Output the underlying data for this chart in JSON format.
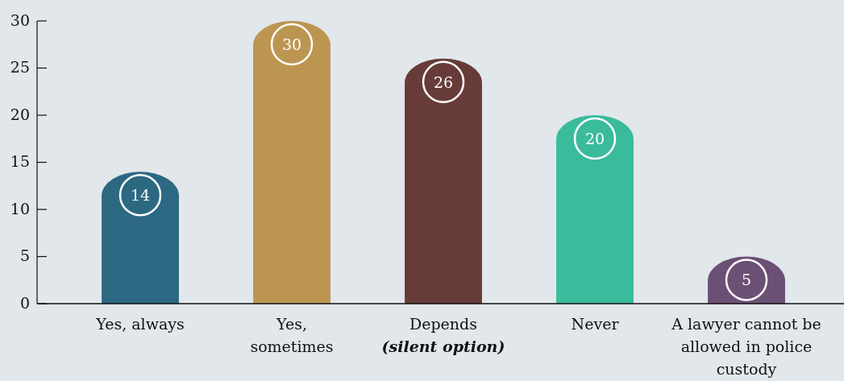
{
  "chart_data": {
    "type": "bar",
    "categories": [
      "Yes, always",
      "Yes,\nsometimes",
      "Depends\n(silent option)",
      "Never",
      "A lawyer cannot be\nallowed in police\ncustody"
    ],
    "values": [
      14,
      30,
      26,
      20,
      5
    ],
    "colors": [
      "#2c6882",
      "#bc9651",
      "#673b38",
      "#3abb9c",
      "#6b5075"
    ],
    "ylim": [
      0,
      30
    ],
    "yticks": [
      0,
      5,
      10,
      15,
      20,
      25,
      30
    ],
    "data_labels": true
  }
}
